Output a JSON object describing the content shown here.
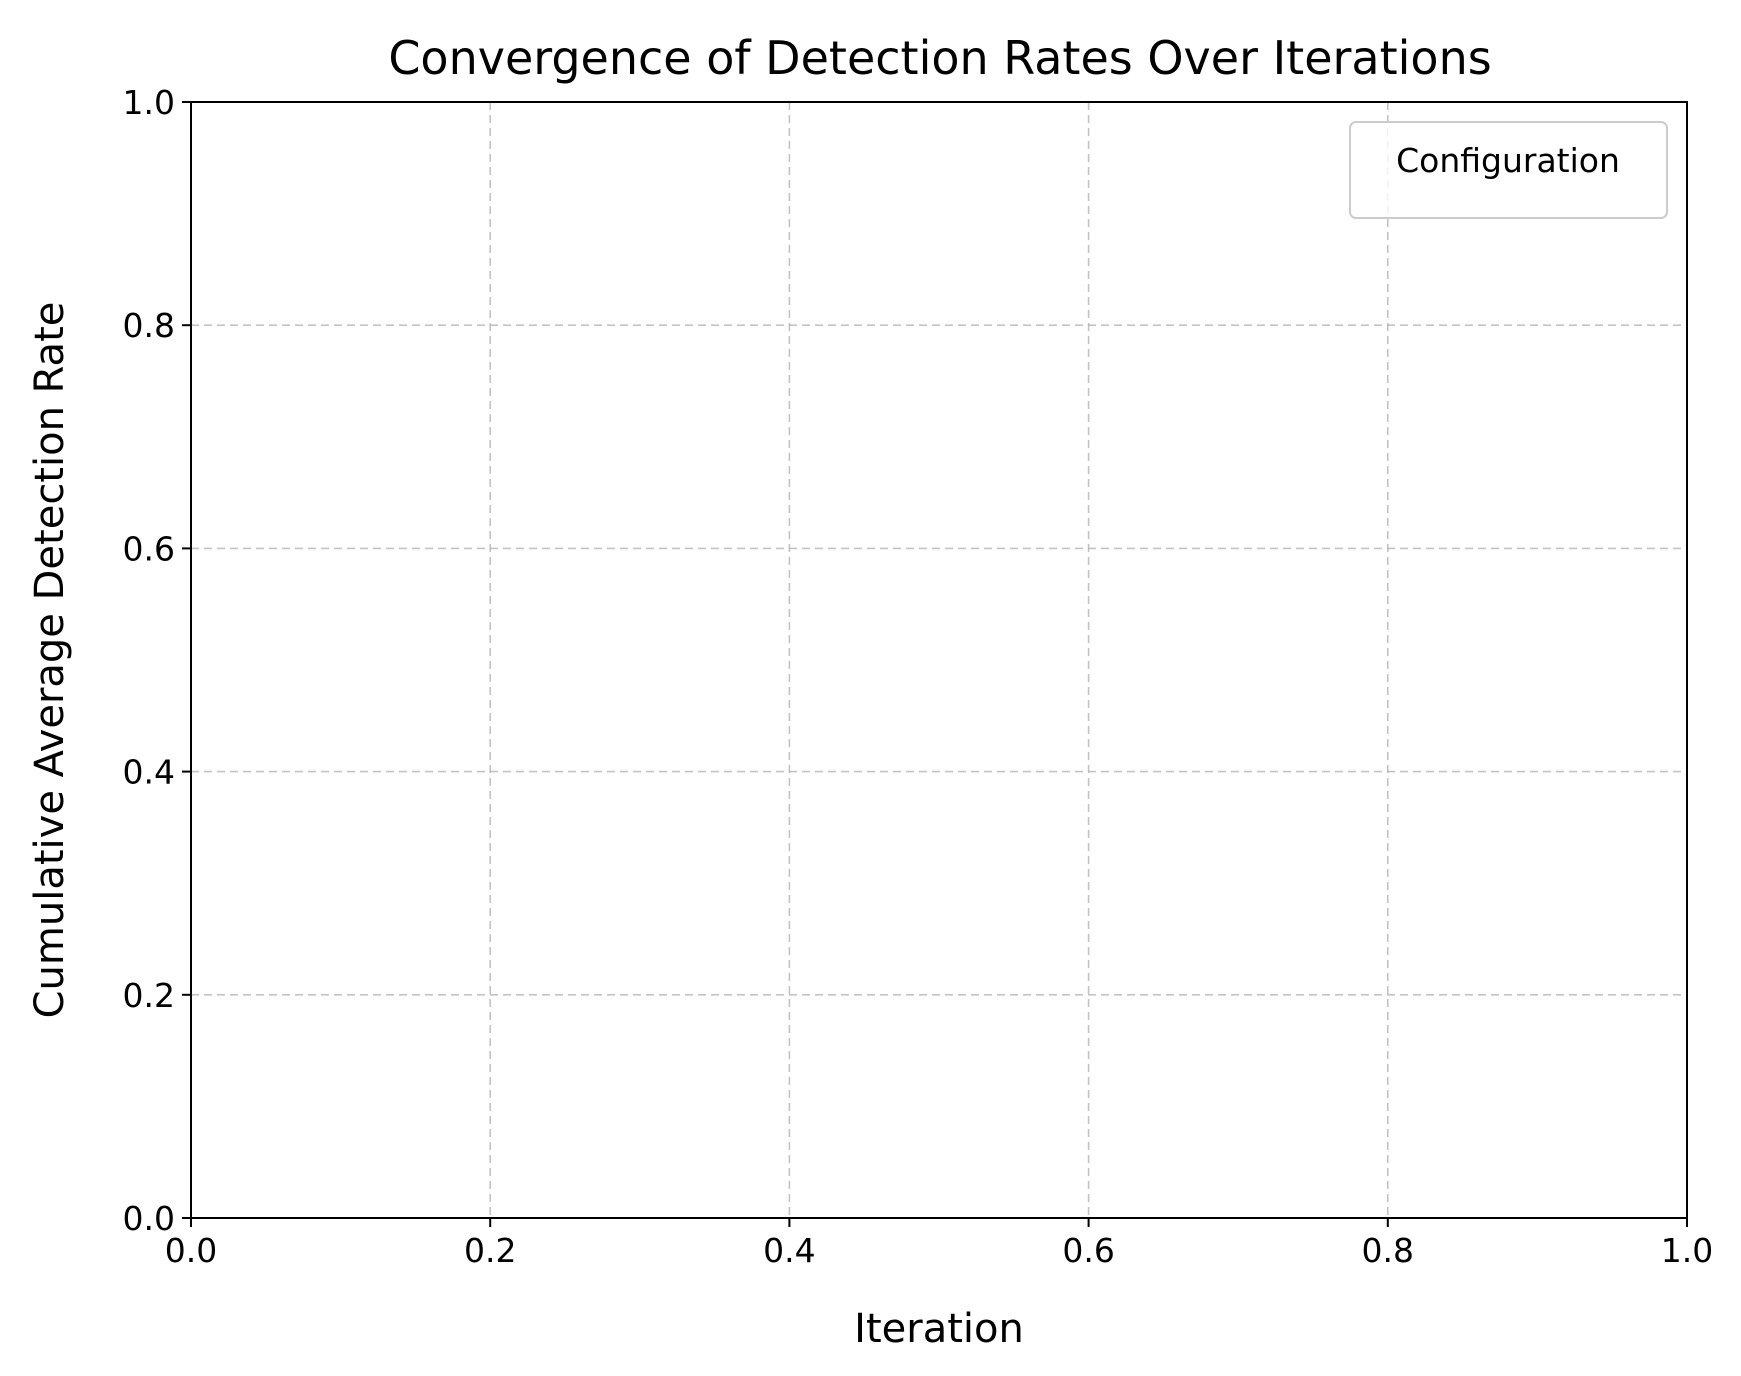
{
  "chart_data": {
    "type": "line",
    "title": "Convergence of Detection Rates Over Iterations",
    "xlabel": "Iteration",
    "ylabel": "Cumulative Average Detection Rate",
    "xlim": [
      0.0,
      1.0
    ],
    "ylim": [
      0.0,
      1.0
    ],
    "x_ticks": [
      "0.0",
      "0.2",
      "0.4",
      "0.6",
      "0.8",
      "1.0"
    ],
    "y_ticks": [
      "0.0",
      "0.2",
      "0.4",
      "0.6",
      "0.8",
      "1.0"
    ],
    "grid": true,
    "grid_style": "dashed",
    "legend": {
      "title": "Configuration",
      "placement": "top-right",
      "entries": []
    },
    "series": []
  },
  "colors": {
    "background": "#ffffff",
    "axis": "#000000",
    "grid": "#b0b0b0",
    "legend_border": "#cccccc"
  }
}
